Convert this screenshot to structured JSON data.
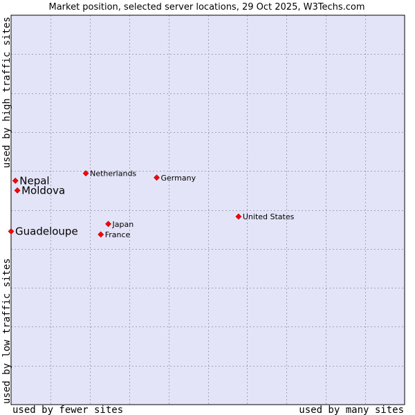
{
  "chart_data": {
    "type": "scatter",
    "title": "Market position, selected server locations, 29 Oct 2025, W3Techs.com",
    "xlabel_left": "used by fewer sites",
    "xlabel_right": "used by many sites",
    "ylabel_bottom": "used by low traffic sites",
    "ylabel_top": "used by high traffic sites",
    "xlim": [
      0,
      100
    ],
    "ylim": [
      0,
      100
    ],
    "grid": true,
    "colors": {
      "plot_background": "#e4e4f8",
      "frame": "#000000",
      "point": "#ff0000"
    },
    "points": [
      {
        "name": "Nepal",
        "x": 1.1,
        "y": 57.5,
        "highlight": true
      },
      {
        "name": "Moldova",
        "x": 1.6,
        "y": 55.0,
        "highlight": true
      },
      {
        "name": "Guadeloupe",
        "x": 0.0,
        "y": 44.5,
        "highlight": true
      },
      {
        "name": "Netherlands",
        "x": 19.0,
        "y": 59.4,
        "highlight": false
      },
      {
        "name": "Germany",
        "x": 37.0,
        "y": 58.3,
        "highlight": false
      },
      {
        "name": "Japan",
        "x": 24.7,
        "y": 46.4,
        "highlight": false
      },
      {
        "name": "France",
        "x": 22.8,
        "y": 43.7,
        "highlight": false
      },
      {
        "name": "United States",
        "x": 57.8,
        "y": 48.3,
        "highlight": false
      }
    ]
  }
}
